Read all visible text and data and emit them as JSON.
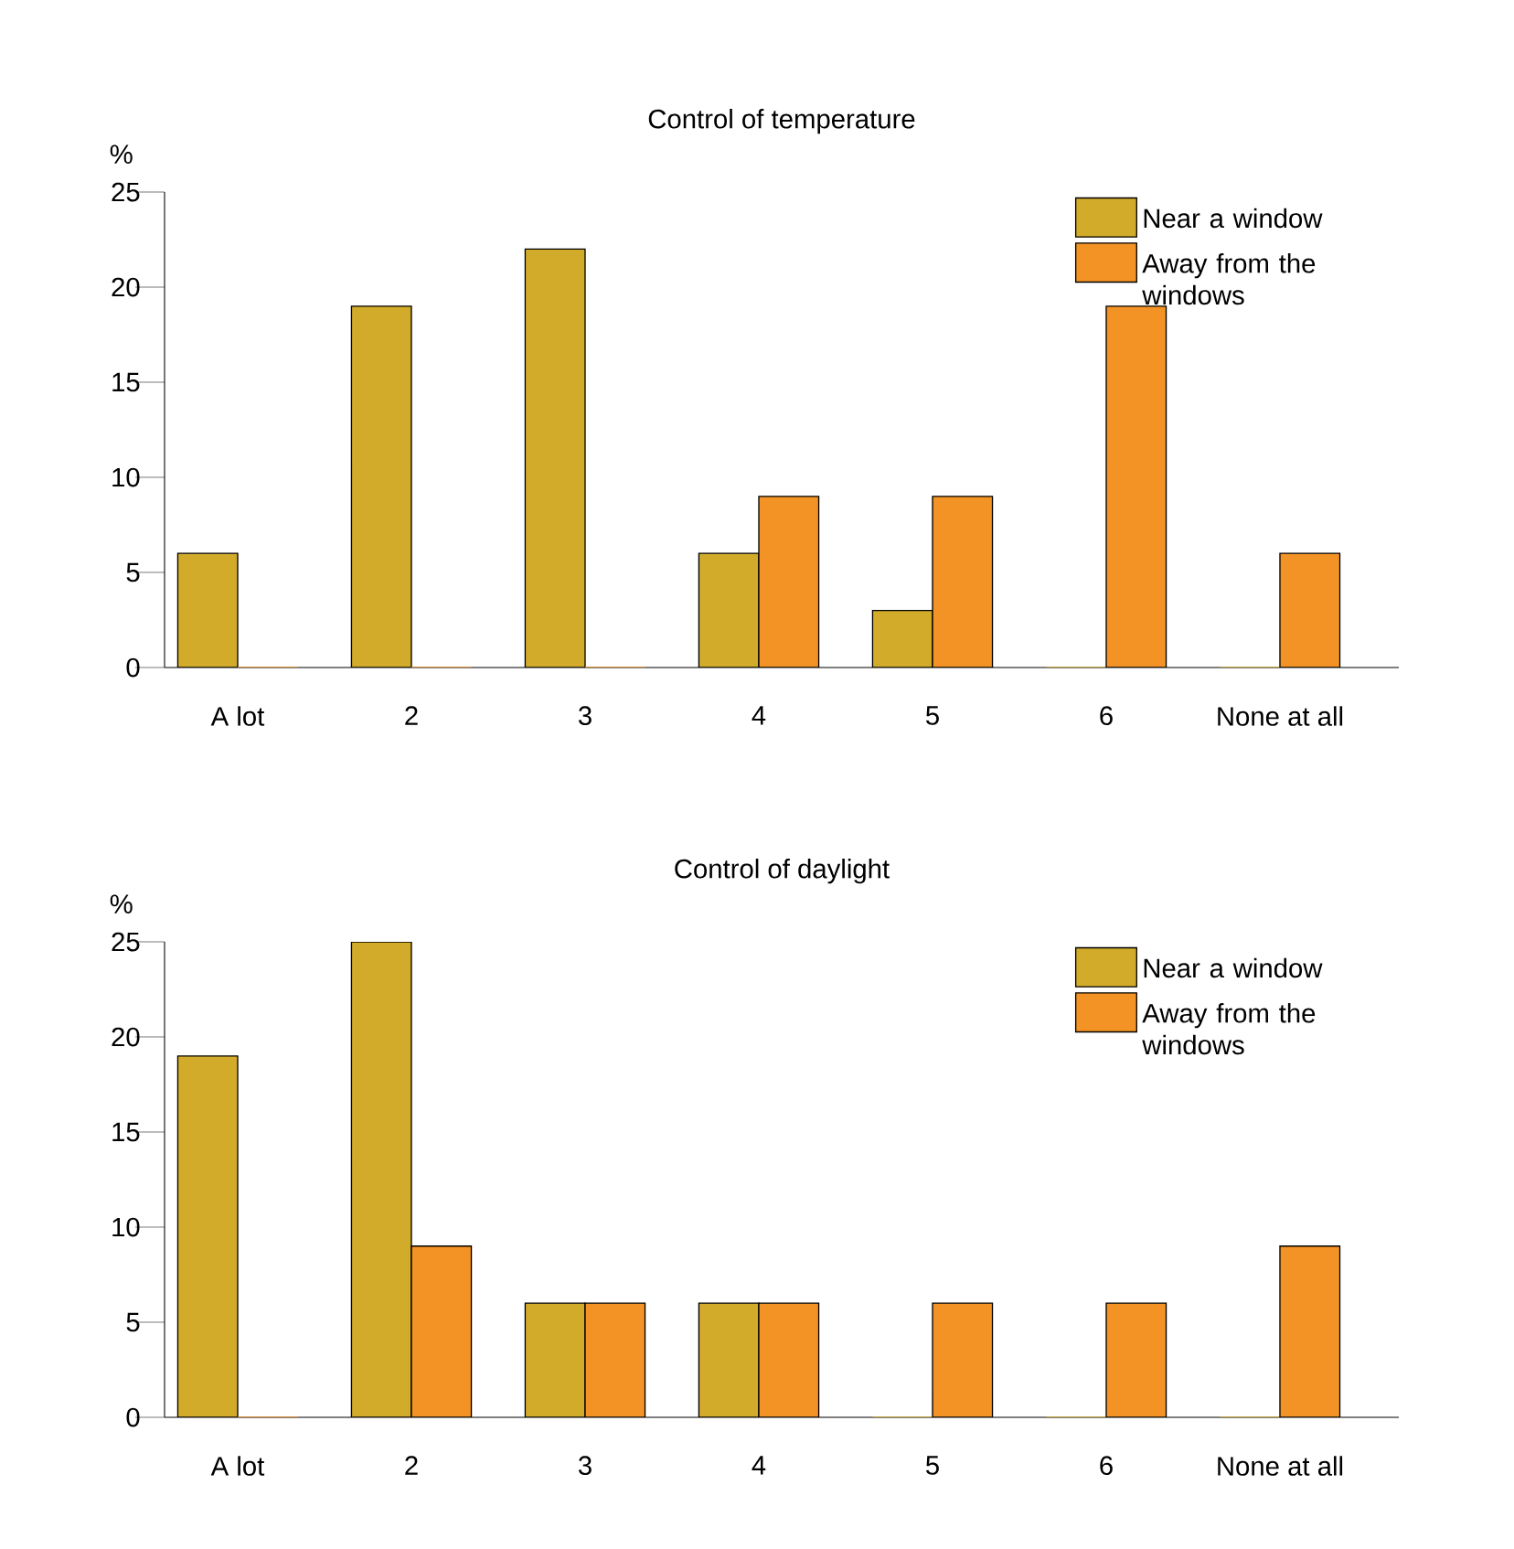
{
  "chart_data": [
    {
      "type": "bar",
      "title": "Control of temperature",
      "ylabel": "%",
      "categories": [
        "A lot",
        "2",
        "3",
        "4",
        "5",
        "6",
        "None at all"
      ],
      "ylim": [
        0,
        25
      ],
      "yticks": [
        0,
        5,
        10,
        15,
        20,
        25
      ],
      "legend": "top right",
      "series": [
        {
          "name": "Near a window",
          "color": "#d3ab2b",
          "values": [
            6,
            19,
            22,
            6,
            3,
            0,
            0
          ]
        },
        {
          "name": "Away from the windows",
          "color": "#f39325",
          "values": [
            0,
            0,
            0,
            9,
            9,
            19,
            6
          ]
        }
      ]
    },
    {
      "type": "bar",
      "title": "Control of daylight",
      "ylabel": "%",
      "categories": [
        "A lot",
        "2",
        "3",
        "4",
        "5",
        "6",
        "None at all"
      ],
      "ylim": [
        0,
        25
      ],
      "yticks": [
        0,
        5,
        10,
        15,
        20,
        25
      ],
      "legend": "top right",
      "series": [
        {
          "name": "Near a window",
          "color": "#d3ab2b",
          "values": [
            19,
            25,
            6,
            6,
            0,
            0,
            0
          ]
        },
        {
          "name": "Away from the windows",
          "color": "#f39325",
          "values": [
            0,
            9,
            6,
            6,
            6,
            6,
            9
          ]
        }
      ]
    }
  ]
}
